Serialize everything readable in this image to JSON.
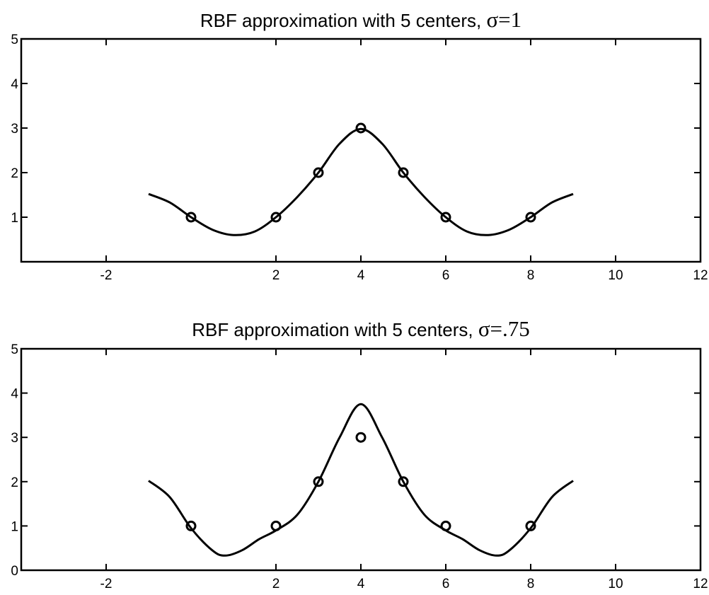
{
  "chart_data": [
    {
      "type": "line",
      "title": "RBF approximation with 5 centers, ",
      "title_symbol": "σ=1",
      "xlim": [
        -4,
        12
      ],
      "ylim": [
        0,
        5
      ],
      "xticks": [
        -2,
        2,
        4,
        6,
        8,
        10,
        12
      ],
      "xtick_labels": [
        "-2",
        "2",
        "4",
        "6",
        "8",
        "10",
        "12"
      ],
      "yticks": [
        1,
        2,
        3,
        4,
        5
      ],
      "ytick_labels": [
        "1",
        "2",
        "3",
        "4",
        "5"
      ],
      "grid": false,
      "series": [
        {
          "style": "curve",
          "x": [
            -1.0,
            -0.5,
            0.0,
            0.5,
            1.0,
            1.5,
            2.0,
            2.5,
            3.0,
            3.5,
            4.0,
            4.5,
            5.0,
            5.5,
            6.0,
            6.5,
            7.0,
            7.5,
            8.0,
            8.5,
            9.0
          ],
          "y": [
            1.52,
            1.33,
            1.0,
            0.72,
            0.6,
            0.68,
            1.0,
            1.45,
            2.0,
            2.65,
            2.98,
            2.65,
            2.0,
            1.45,
            1.0,
            0.68,
            0.6,
            0.72,
            1.0,
            1.33,
            1.52
          ]
        },
        {
          "style": "circle-markers",
          "x": [
            0,
            2,
            3,
            4,
            5,
            6,
            8
          ],
          "y": [
            1,
            1,
            2,
            3,
            2,
            1,
            1
          ]
        }
      ]
    },
    {
      "type": "line",
      "title": "RBF approximation with 5 centers, ",
      "title_symbol": "σ=.75",
      "xlim": [
        -4,
        12
      ],
      "ylim": [
        0,
        5
      ],
      "xticks": [
        -2,
        2,
        4,
        6,
        8,
        10,
        12
      ],
      "xtick_labels": [
        "-2",
        "2",
        "4",
        "6",
        "8",
        "10",
        "12"
      ],
      "yticks": [
        0,
        1,
        2,
        3,
        4,
        5
      ],
      "ytick_labels": [
        "0",
        "1",
        "2",
        "3",
        "4",
        "5"
      ],
      "grid": false,
      "series": [
        {
          "style": "curve",
          "x": [
            -1.0,
            -0.5,
            0.0,
            0.5,
            0.8,
            1.2,
            1.6,
            2.0,
            2.5,
            3.0,
            3.5,
            4.0,
            4.5,
            5.0,
            5.5,
            6.0,
            6.4,
            6.8,
            7.2,
            7.5,
            8.0,
            8.5,
            9.0
          ],
          "y": [
            2.02,
            1.65,
            0.95,
            0.45,
            0.33,
            0.45,
            0.7,
            0.9,
            1.25,
            2.0,
            3.0,
            3.75,
            3.0,
            2.0,
            1.25,
            0.9,
            0.7,
            0.45,
            0.33,
            0.45,
            0.95,
            1.65,
            2.02
          ]
        },
        {
          "style": "circle-markers",
          "x": [
            0,
            2,
            3,
            4,
            5,
            6,
            8
          ],
          "y": [
            1,
            1,
            2,
            3,
            2,
            1,
            1
          ]
        }
      ]
    }
  ]
}
